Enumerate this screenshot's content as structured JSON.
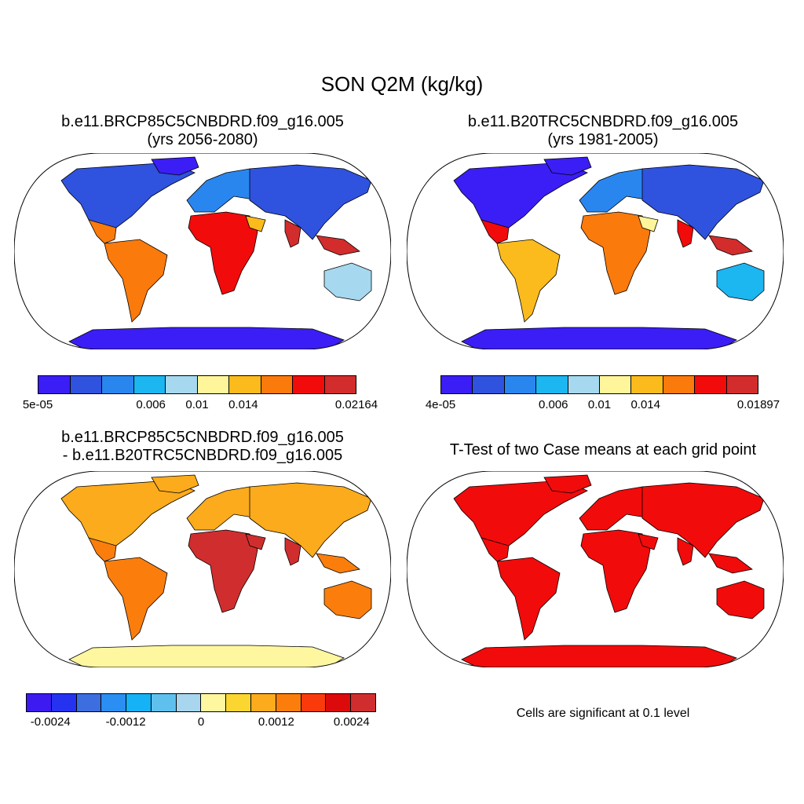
{
  "figure": {
    "main_title": "SON Q2M (kg/kg)"
  },
  "panels": [
    {
      "title_line1": "b.e11.BRCP85C5CNBDRD.f09_g16.005",
      "title_line2": "(yrs 2056-2080)",
      "colorbar": {
        "colors": [
          "#3b1ef5",
          "#2f52df",
          "#2a86ef",
          "#1cb6f1",
          "#a6d8ef",
          "#fff59a",
          "#fbbb1c",
          "#fb7a0c",
          "#f20b0b",
          "#d22c2c"
        ],
        "tick_labels": [
          "5e-05",
          "0.006",
          "0.01",
          "0.014",
          "0.02164"
        ]
      }
    },
    {
      "title_line1": "b.e11.B20TRC5CNBDRD.f09_g16.005",
      "title_line2": "(yrs 1981-2005)",
      "colorbar": {
        "colors": [
          "#3b1ef5",
          "#2f52df",
          "#2a86ef",
          "#1cb6f1",
          "#a6d8ef",
          "#fff59a",
          "#fbbb1c",
          "#fb7a0c",
          "#f20b0b",
          "#d22c2c"
        ],
        "tick_labels": [
          "4e-05",
          "0.006",
          "0.01",
          "0.014",
          "0.01897"
        ]
      }
    },
    {
      "title_line1": "b.e11.BRCP85C5CNBDRD.f09_g16.005",
      "title_line2": "- b.e11.B20TRC5CNBDRD.f09_g16.005",
      "colorbar": {
        "colors": [
          "#3c1af0",
          "#2532f0",
          "#3c6ee0",
          "#2a8ef2",
          "#15b2f5",
          "#5fc0ee",
          "#a8d6ee",
          "#fff7a0",
          "#fbd630",
          "#fbab1c",
          "#fb7e0c",
          "#fb3a0c",
          "#dc0a0a",
          "#d02e2e"
        ],
        "tick_labels": [
          "-0.0024",
          "-0.0012",
          "0",
          "0.0012",
          "0.0024"
        ]
      }
    },
    {
      "title_line1": "T-Test of two Case means at each grid point",
      "note": "Cells are significant at 0.1 level"
    }
  ]
}
